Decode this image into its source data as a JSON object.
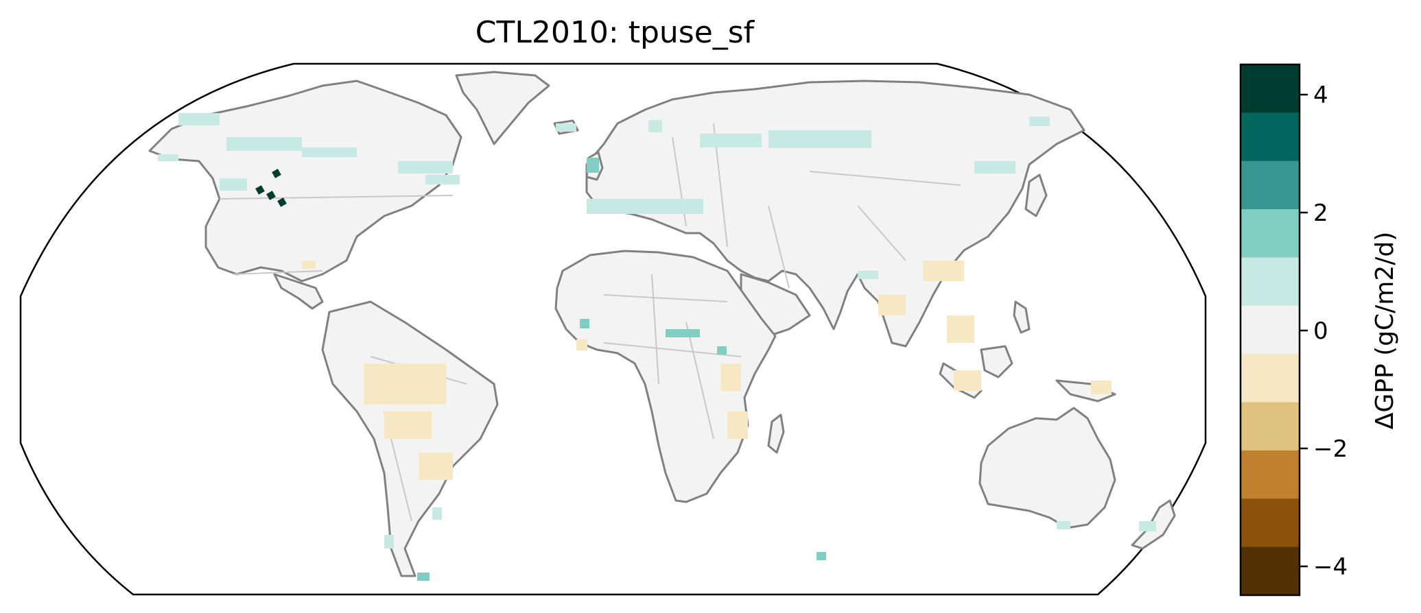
{
  "title": "CTL2010: tpuse_sf",
  "colorbar": {
    "label": "ΔGPP (gC/m2/d)",
    "range": [
      -4.5,
      4.5
    ],
    "ticks": [
      {
        "value": 4,
        "label": "4"
      },
      {
        "value": 2,
        "label": "2"
      },
      {
        "value": 0,
        "label": "0"
      },
      {
        "value": -2,
        "label": "−2"
      },
      {
        "value": -4,
        "label": "−4"
      }
    ],
    "bins": [
      {
        "min": 3.5,
        "max": 4.5,
        "color": "#003c30"
      },
      {
        "min": 2.5,
        "max": 3.5,
        "color": "#01665e"
      },
      {
        "min": 1.5,
        "max": 2.5,
        "color": "#35978f"
      },
      {
        "min": 0.5,
        "max": 1.5,
        "color": "#80cdc1"
      },
      {
        "min": -0.5,
        "max": 0.5,
        "color": "#c7eae5"
      },
      {
        "min": -1.5,
        "max": -0.5,
        "color": "#f2f2f2"
      },
      {
        "min": -2.5,
        "max": -1.5,
        "color": "#f6e8c3"
      },
      {
        "min": -3.5,
        "max": -2.5,
        "color": "#dfc27d"
      },
      {
        "min": -4.5,
        "max": -3.5,
        "color": "#bf812d"
      }
    ],
    "extra_bins": [
      {
        "min": -5.5,
        "max": -4.5,
        "color": "#8c510a"
      },
      {
        "min": -6.5,
        "max": -5.5,
        "color": "#543005"
      }
    ]
  },
  "map": {
    "projection": "Robinson",
    "coastline_color": "#808080",
    "border_color": "#c8c8c8",
    "land_color": "#f3f3f3",
    "ocean_color": "#ffffff"
  }
}
